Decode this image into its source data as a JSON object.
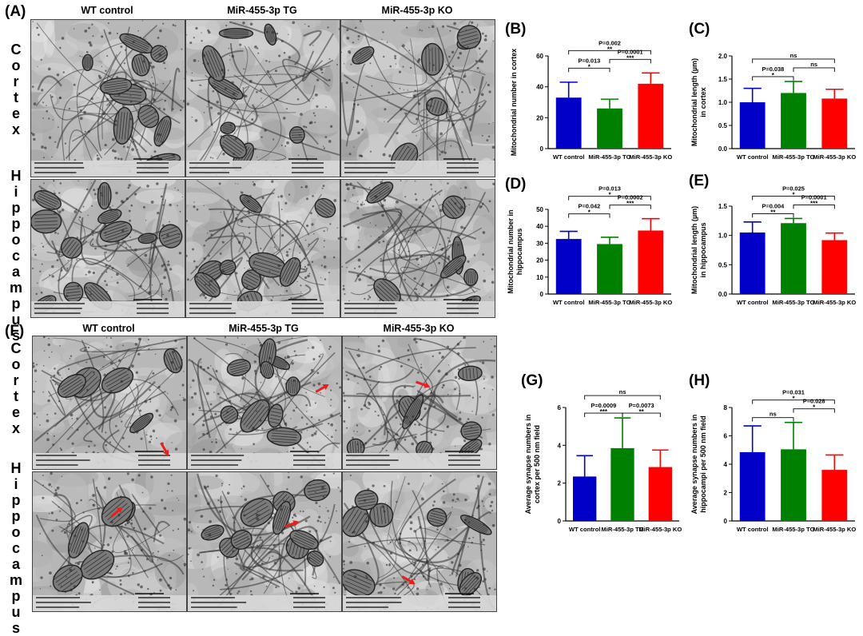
{
  "panel_labels": {
    "A": "(A)",
    "B": "(B)",
    "C": "(C)",
    "D": "(D)",
    "E": "(E)",
    "F": "(F)",
    "G": "(G)",
    "H": "(H)"
  },
  "columns": [
    "WT control",
    "MiR-455-3p TG",
    "MiR-455-3p KO"
  ],
  "rows": {
    "cortex": "Cortex",
    "hippocampus": "Hippocampus"
  },
  "colors": {
    "wt": "#0000c8",
    "tg": "#008000",
    "ko": "#ff0000",
    "arrow": "#e8201c"
  },
  "chart_data": [
    {
      "id": "B",
      "type": "bar",
      "categories": [
        "WT control",
        "MiR-455-3p TG",
        "MiR-455-3p KO"
      ],
      "values": [
        33,
        26,
        42
      ],
      "errors": [
        10,
        6,
        7
      ],
      "ylim": [
        0,
        60
      ],
      "yticks": [
        0,
        20,
        40,
        60
      ],
      "ylabel": [
        "Mitochondrial number in cortex"
      ],
      "comparisons": [
        {
          "from": 0,
          "to": 1,
          "p": "P=0.013",
          "sig": "*",
          "level": 0
        },
        {
          "from": 1,
          "to": 2,
          "p": "P=0.0001",
          "sig": "***",
          "level": 1
        },
        {
          "from": 0,
          "to": 2,
          "p": "P=0.002",
          "sig": "**",
          "level": 2
        }
      ]
    },
    {
      "id": "C",
      "type": "bar",
      "categories": [
        "WT control",
        "MiR-455-3p TG",
        "MiR-455-3p KO"
      ],
      "values": [
        1.0,
        1.2,
        1.08
      ],
      "errors": [
        0.3,
        0.25,
        0.2
      ],
      "ylim": [
        0,
        2.0
      ],
      "yticks": [
        0.0,
        0.5,
        1.0,
        1.5,
        2.0
      ],
      "ylabel": [
        "Mitochondrial length (µm)",
        "in cortex"
      ],
      "comparisons": [
        {
          "from": 0,
          "to": 1,
          "p": "P=0.038",
          "sig": "*",
          "level": 0
        },
        {
          "from": 1,
          "to": 2,
          "p": "",
          "sig": "ns",
          "level": 1
        },
        {
          "from": 0,
          "to": 2,
          "p": "",
          "sig": "ns",
          "level": 2
        }
      ]
    },
    {
      "id": "D",
      "type": "bar",
      "categories": [
        "WT control",
        "MiR-455-3p TG",
        "MiR-455-3p KO"
      ],
      "values": [
        32.5,
        29.5,
        37.5
      ],
      "errors": [
        4.5,
        4,
        7
      ],
      "ylim": [
        0,
        50
      ],
      "yticks": [
        0,
        10,
        20,
        30,
        40,
        50
      ],
      "ylabel": [
        "Mitochondrial number in",
        "hippocampus"
      ],
      "comparisons": [
        {
          "from": 0,
          "to": 1,
          "p": "P=0.042",
          "sig": "*",
          "level": 0
        },
        {
          "from": 1,
          "to": 2,
          "p": "P=0.0002",
          "sig": "***",
          "level": 1
        },
        {
          "from": 0,
          "to": 2,
          "p": "P=0.013",
          "sig": "*",
          "level": 2
        }
      ]
    },
    {
      "id": "E",
      "type": "bar",
      "categories": [
        "WT control",
        "MiR-455-3p TG",
        "MiR-455-3p KO"
      ],
      "values": [
        1.05,
        1.21,
        0.92
      ],
      "errors": [
        0.18,
        0.08,
        0.12
      ],
      "ylim": [
        0,
        1.5
      ],
      "yticks": [
        0.0,
        0.5,
        1.0,
        1.5
      ],
      "ylabel": [
        "Mitochondrial length (µm)",
        "in hippocampus"
      ],
      "comparisons": [
        {
          "from": 0,
          "to": 1,
          "p": "P=0.004",
          "sig": "**",
          "level": 0
        },
        {
          "from": 1,
          "to": 2,
          "p": "P=0.0001",
          "sig": "***",
          "level": 1
        },
        {
          "from": 0,
          "to": 2,
          "p": "P=0.025",
          "sig": "*",
          "level": 2
        }
      ]
    },
    {
      "id": "G",
      "type": "bar",
      "categories": [
        "WT control",
        "MiR-455-3p TG",
        "MiR-455-3p KO"
      ],
      "values": [
        2.35,
        3.85,
        2.85
      ],
      "errors": [
        1.1,
        1.6,
        0.9
      ],
      "ylim": [
        0,
        6
      ],
      "yticks": [
        0,
        2,
        4,
        6
      ],
      "ylabel": [
        "Average synapse numbers in",
        "cortex per 500 nm field"
      ],
      "comparisons": [
        {
          "from": 0,
          "to": 1,
          "p": "P=0.0009",
          "sig": "***",
          "level": 0
        },
        {
          "from": 1,
          "to": 2,
          "p": "P=0.0073",
          "sig": "**",
          "level": 0
        },
        {
          "from": 0,
          "to": 2,
          "p": "",
          "sig": "ns",
          "level": 2
        }
      ]
    },
    {
      "id": "H",
      "type": "bar",
      "categories": [
        "WT control",
        "MiR-455-3p TG",
        "MiR-455-3p KO"
      ],
      "values": [
        4.85,
        5.05,
        3.6
      ],
      "errors": [
        1.85,
        1.9,
        1.05
      ],
      "ylim": [
        0,
        8
      ],
      "yticks": [
        0,
        2,
        4,
        6,
        8
      ],
      "ylabel": [
        "Average synapse numbers in",
        "hippocampi per 500 nm field"
      ],
      "comparisons": [
        {
          "from": 0,
          "to": 1,
          "p": "",
          "sig": "ns",
          "level": 0
        },
        {
          "from": 1,
          "to": 2,
          "p": "P=0.028",
          "sig": "*",
          "level": 1
        },
        {
          "from": 0,
          "to": 2,
          "p": "P=0.031",
          "sig": "*",
          "level": 2
        }
      ]
    }
  ]
}
